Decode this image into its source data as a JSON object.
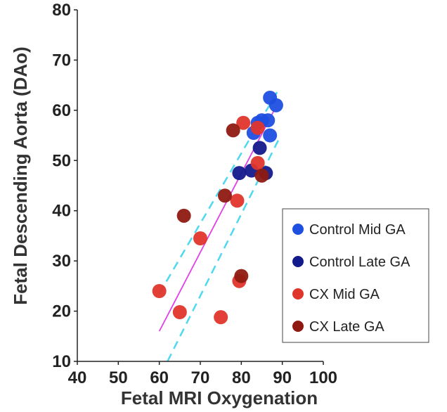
{
  "chart_data": {
    "type": "scatter",
    "title": "",
    "xlabel": "Fetal MRI Oxygenation",
    "ylabel": "Fetal Descending Aorta (DAo)",
    "xlim": [
      40,
      100
    ],
    "ylim": [
      10,
      80
    ],
    "xticks": [
      40,
      50,
      60,
      70,
      80,
      90,
      100
    ],
    "yticks": [
      10,
      20,
      30,
      40,
      50,
      60,
      70,
      80
    ],
    "grid": false,
    "legend_position": "right",
    "series": [
      {
        "name": "Control Mid GA",
        "color": "#1f4fe0",
        "points": [
          [
            87,
            62.5
          ],
          [
            88.5,
            61
          ],
          [
            85,
            58
          ],
          [
            86.5,
            58
          ],
          [
            84,
            57.5
          ],
          [
            83,
            55.5
          ],
          [
            87,
            55
          ]
        ]
      },
      {
        "name": "Control Late GA",
        "color": "#131a8c",
        "points": [
          [
            84.5,
            52.5
          ],
          [
            79.5,
            47.5
          ],
          [
            86,
            47.5
          ],
          [
            82.5,
            48
          ]
        ]
      },
      {
        "name": "CX Mid GA",
        "color": "#e0352b",
        "points": [
          [
            80.5,
            57.5
          ],
          [
            84,
            56.5
          ],
          [
            84,
            49.5
          ],
          [
            79,
            42
          ],
          [
            70,
            34.5
          ],
          [
            60,
            24
          ],
          [
            79.5,
            26
          ],
          [
            65,
            19.8
          ],
          [
            75,
            18.8
          ]
        ]
      },
      {
        "name": "CX Late GA",
        "color": "#8e1a12",
        "points": [
          [
            78,
            56
          ],
          [
            85,
            47
          ],
          [
            76,
            43
          ],
          [
            66,
            39
          ],
          [
            80,
            27
          ]
        ]
      }
    ],
    "fit_line": {
      "style": "solid",
      "color": "#e040e8",
      "points": [
        [
          60,
          16
        ],
        [
          88,
          60
        ]
      ]
    },
    "confidence_band": {
      "style": "dashed",
      "color": "#4fd8f0",
      "upper": [
        [
          60,
          23.5
        ],
        [
          89,
          64
        ]
      ],
      "lower": [
        [
          62,
          10
        ],
        [
          89,
          54
        ]
      ]
    }
  }
}
